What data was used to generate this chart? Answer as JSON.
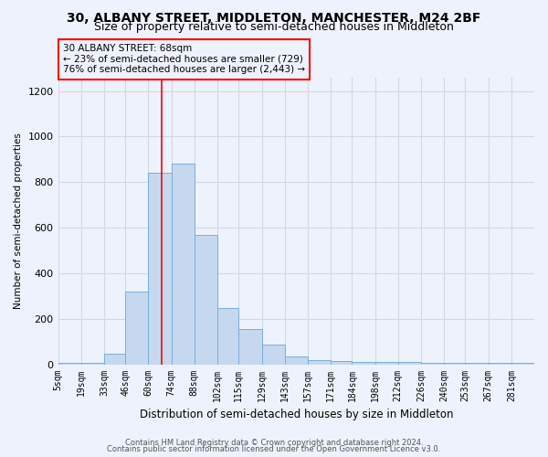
{
  "title1": "30, ALBANY STREET, MIDDLETON, MANCHESTER, M24 2BF",
  "title2": "Size of property relative to semi-detached houses in Middleton",
  "xlabel": "Distribution of semi-detached houses by size in Middleton",
  "ylabel": "Number of semi-detached properties",
  "footnote1": "Contains HM Land Registry data © Crown copyright and database right 2024.",
  "footnote2": "Contains public sector information licensed under the Open Government Licence v3.0.",
  "annotation_title": "30 ALBANY STREET: 68sqm",
  "annotation_line1": "← 23% of semi-detached houses are smaller (729)",
  "annotation_line2": "76% of semi-detached houses are larger (2,443) →",
  "bar_left_edges": [
    5,
    19,
    33,
    46,
    60,
    74,
    88,
    102,
    115,
    129,
    143,
    157,
    171,
    184,
    198,
    212,
    226,
    240,
    253,
    267,
    281
  ],
  "bar_heights": [
    5,
    5,
    45,
    320,
    840,
    880,
    570,
    245,
    155,
    85,
    35,
    20,
    15,
    10,
    10,
    10,
    5,
    5,
    5,
    5,
    5
  ],
  "bar_color": "#c5d8f0",
  "bar_edge_color": "#7aafd4",
  "red_line_x": 68,
  "ylim": [
    0,
    1260
  ],
  "yticks": [
    0,
    200,
    400,
    600,
    800,
    1000,
    1200
  ],
  "tick_labels": [
    "5sqm",
    "19sqm",
    "33sqm",
    "46sqm",
    "60sqm",
    "74sqm",
    "88sqm",
    "102sqm",
    "115sqm",
    "129sqm",
    "143sqm",
    "157sqm",
    "171sqm",
    "184sqm",
    "198sqm",
    "212sqm",
    "226sqm",
    "240sqm",
    "253sqm",
    "267sqm",
    "281sqm"
  ],
  "bg_color": "#eef2fc",
  "title_fontsize": 10,
  "subtitle_fontsize": 9,
  "grid_color": "#d0d8e8"
}
